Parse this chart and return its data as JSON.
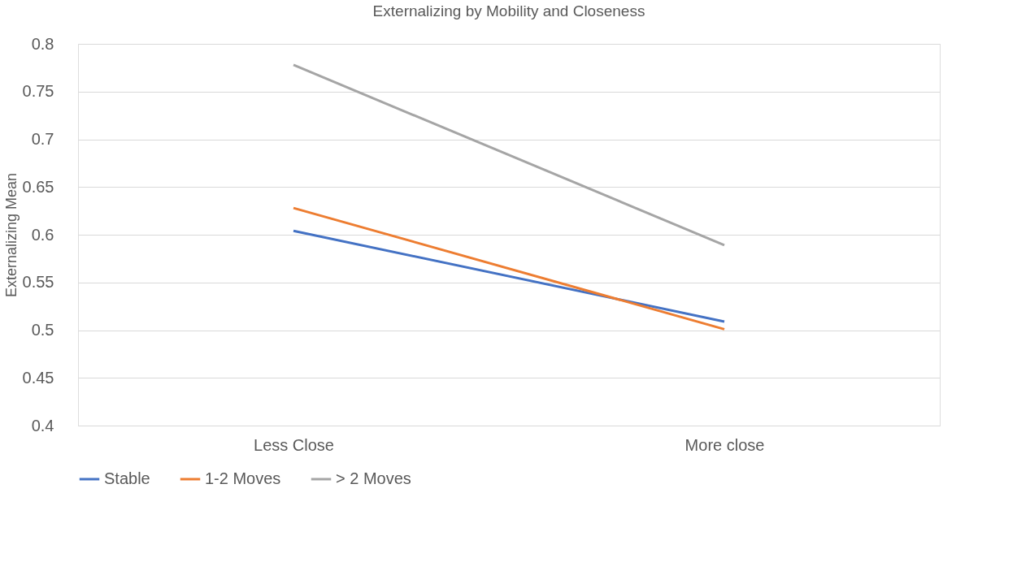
{
  "chart_data": {
    "type": "line",
    "title": "Externalizing  by Mobility and Closeness",
    "ylabel": "Externalizing Mean",
    "categories": [
      "Less Close",
      "More close"
    ],
    "series": [
      {
        "name": "Stable",
        "color": "#4472c4",
        "values": [
          0.604,
          0.509
        ]
      },
      {
        "name": "1-2 Moves",
        "color": "#ed7d31",
        "values": [
          0.628,
          0.501
        ]
      },
      {
        "name": "> 2 Moves",
        "color": "#a5a5a5",
        "values": [
          0.778,
          0.589
        ]
      }
    ],
    "ylim": [
      0.4,
      0.8
    ],
    "yticks": [
      0.4,
      0.45,
      0.5,
      0.55,
      0.6,
      0.65,
      0.7,
      0.75,
      0.8
    ],
    "grid": "y",
    "legend": "bottom",
    "marker": "none",
    "line_style": "solid"
  }
}
